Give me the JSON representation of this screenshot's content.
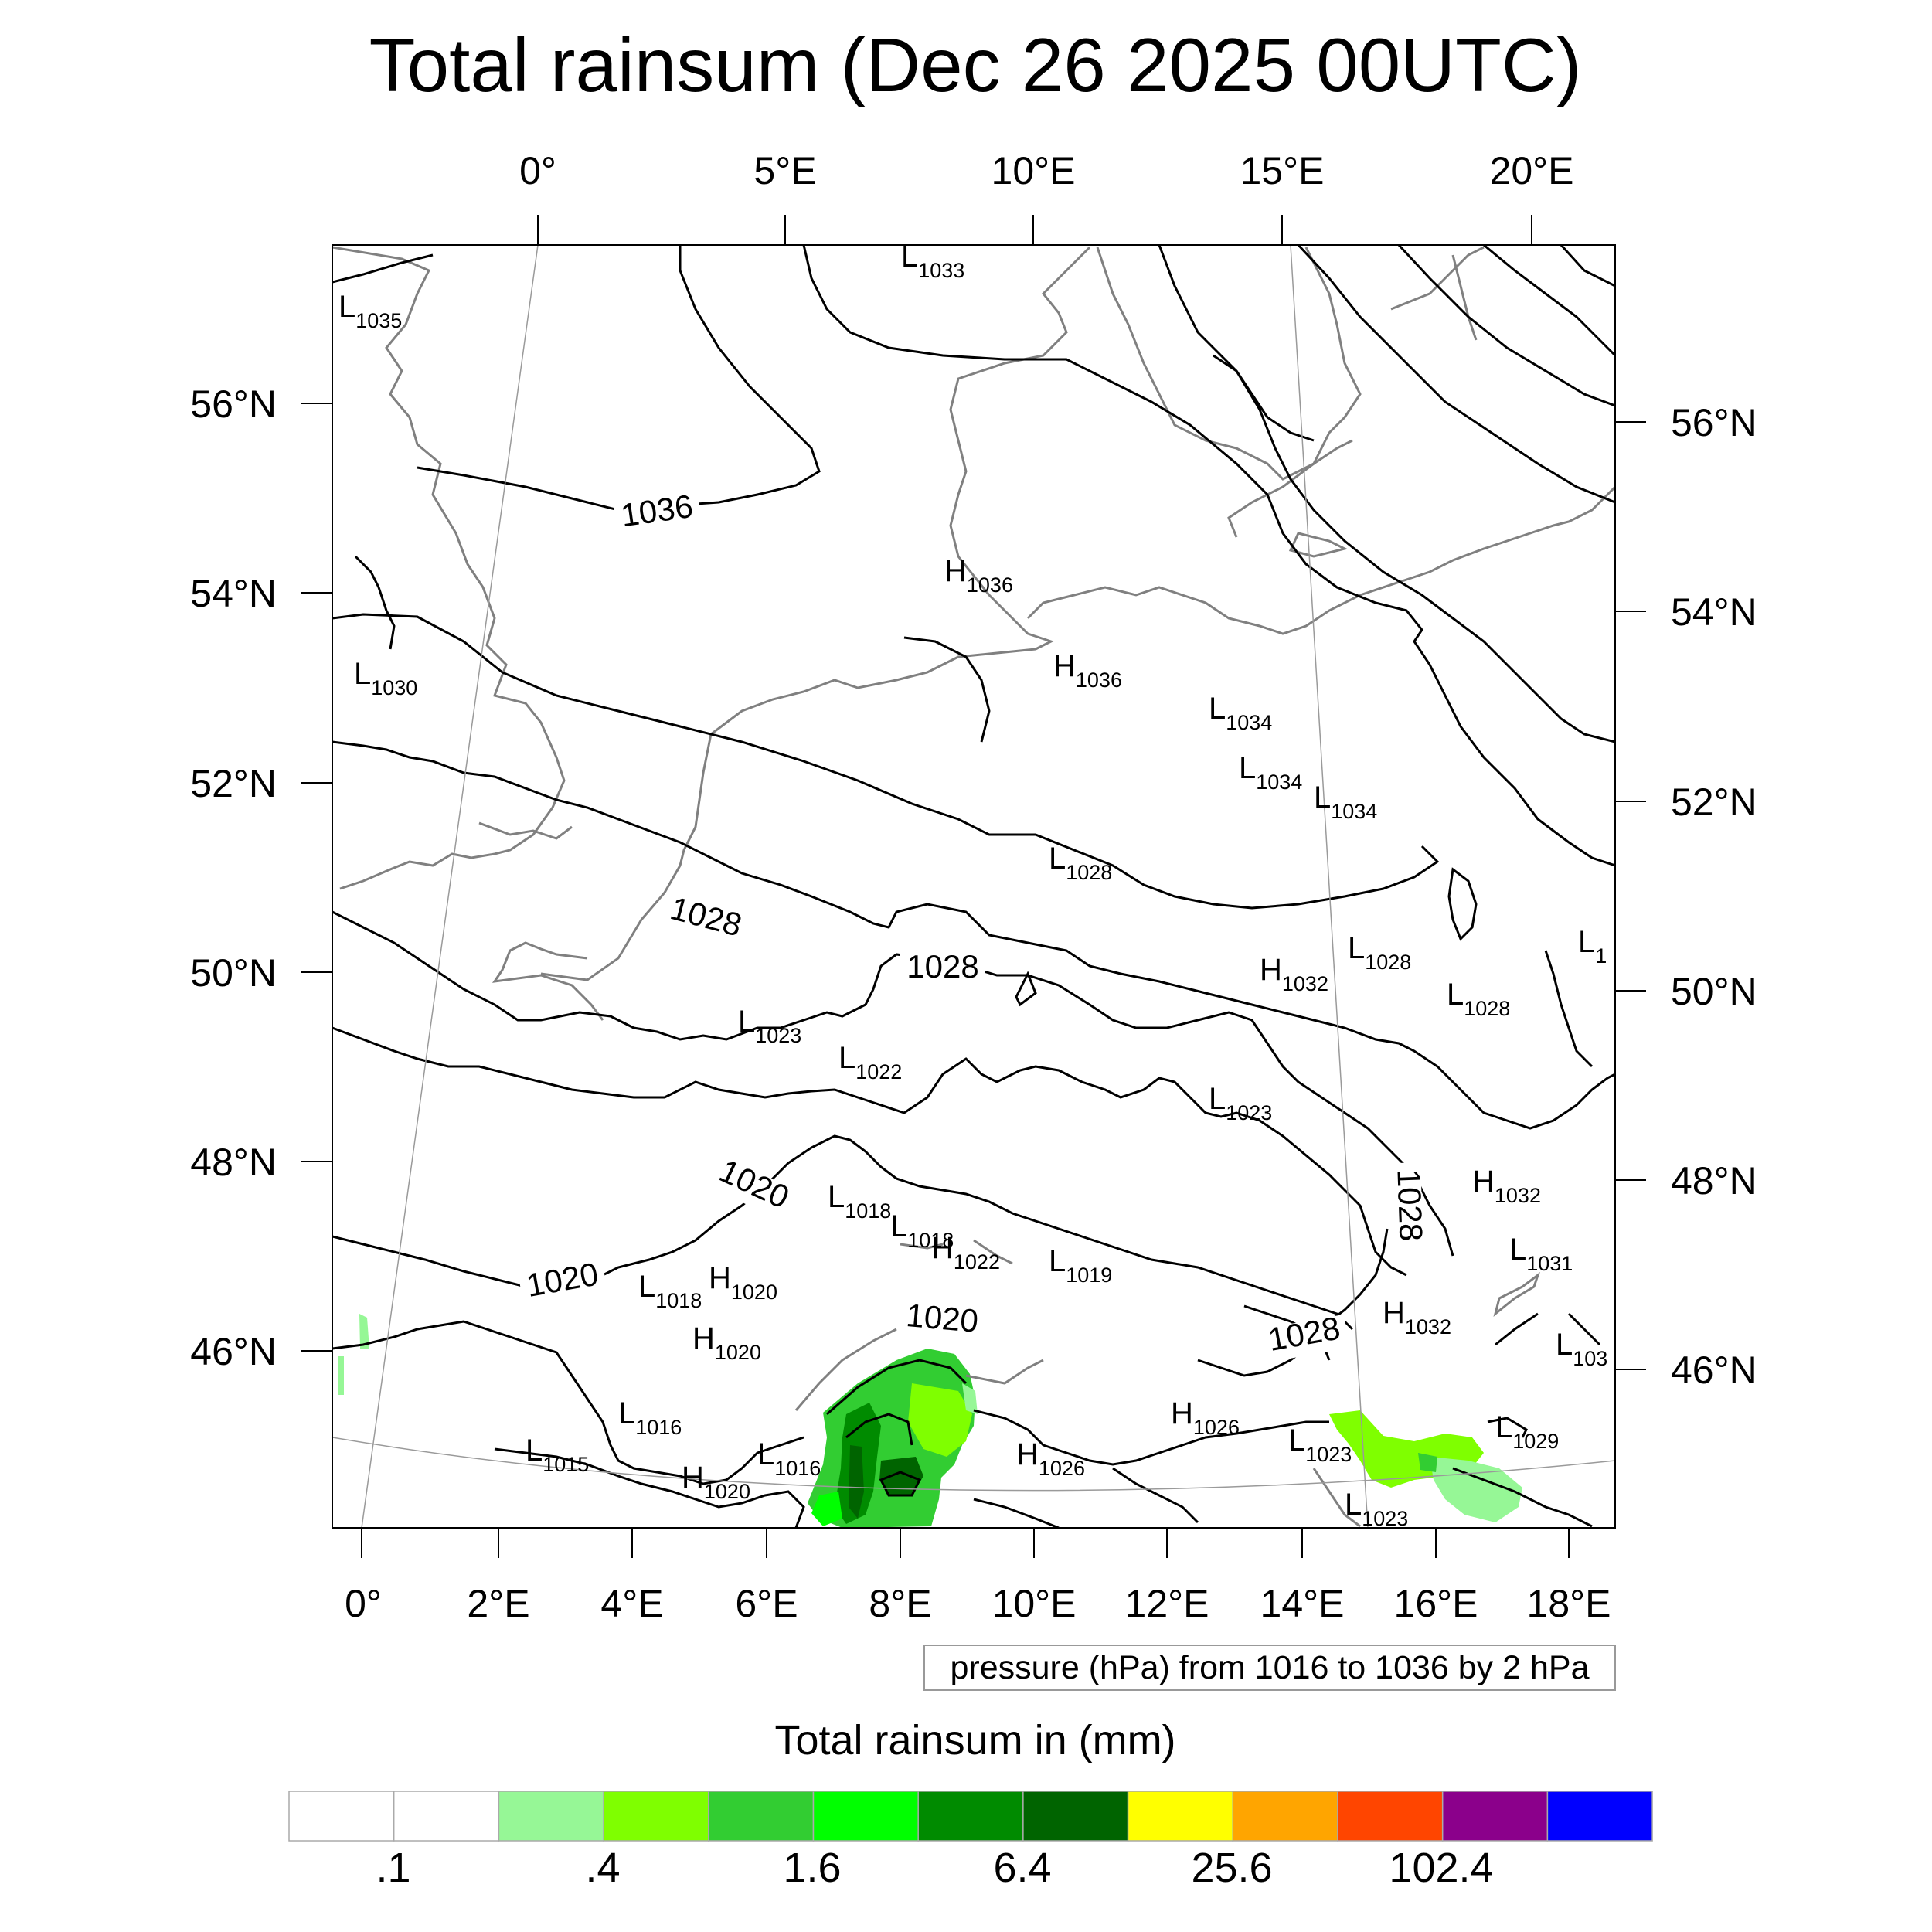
{
  "title": "Total rainsum (Dec 26 2025 00UTC)",
  "top_lon_labels": [
    "0°",
    "5°E",
    "10°E",
    "15°E",
    "20°E"
  ],
  "bottom_lon_labels": [
    "0°",
    "2°E",
    "4°E",
    "6°E",
    "8°E",
    "10°E",
    "12°E",
    "14°E",
    "16°E",
    "18°E"
  ],
  "left_lat_labels": [
    "56°N",
    "54°N",
    "52°N",
    "50°N",
    "48°N",
    "46°N"
  ],
  "right_lat_labels": [
    "56°N",
    "54°N",
    "52°N",
    "50°N",
    "48°N",
    "46°N"
  ],
  "pressure_centers": [
    {
      "t": "L",
      "v": "1033"
    },
    {
      "t": "L",
      "v": "1035"
    },
    {
      "t": "H",
      "v": "1036"
    },
    {
      "t": "L",
      "v": "1030"
    },
    {
      "t": "H",
      "v": "1036"
    },
    {
      "t": "L",
      "v": "1034"
    },
    {
      "t": "L",
      "v": "1034"
    },
    {
      "t": "L",
      "v": "1034"
    },
    {
      "t": "L",
      "v": "1028"
    },
    {
      "t": "L",
      "v": "1028"
    },
    {
      "t": "H",
      "v": "1032"
    },
    {
      "t": "L",
      "v": "1028"
    },
    {
      "t": "L",
      "v": "1"
    },
    {
      "t": "L",
      "v": "1023"
    },
    {
      "t": "L",
      "v": "1022"
    },
    {
      "t": "L",
      "v": "1023"
    },
    {
      "t": "H",
      "v": "1032"
    },
    {
      "t": "L",
      "v": "1018"
    },
    {
      "t": "L",
      "v": "1018"
    },
    {
      "t": "H",
      "v": "1022"
    },
    {
      "t": "L",
      "v": "1019"
    },
    {
      "t": "L",
      "v": "1031"
    },
    {
      "t": "L",
      "v": "1018"
    },
    {
      "t": "H",
      "v": "1020"
    },
    {
      "t": "H",
      "v": "1020"
    },
    {
      "t": "H",
      "v": "1032"
    },
    {
      "t": "L",
      "v": "103"
    },
    {
      "t": "L",
      "v": "1016"
    },
    {
      "t": "L",
      "v": "1015"
    },
    {
      "t": "L",
      "v": "1016"
    },
    {
      "t": "H",
      "v": "1020"
    },
    {
      "t": "H",
      "v": "1026"
    },
    {
      "t": "H",
      "v": "1026"
    },
    {
      "t": "L",
      "v": "1023"
    },
    {
      "t": "L",
      "v": "1029"
    },
    {
      "t": "L",
      "v": "1023"
    }
  ],
  "contour_labels": [
    "1036",
    "1028",
    "1028",
    "1020",
    "1020",
    "1020",
    "1028",
    "1028"
  ],
  "pressure_note": "pressure (hPa) from 1016 to 1036 by 2 hPa",
  "colorbar": {
    "title": "Total rainsum in (mm)",
    "colors": [
      "#ffffff",
      "#ffffff",
      "#96f796",
      "#7fff00",
      "#32cd32",
      "#00ff00",
      "#008b00",
      "#006400",
      "#ffff00",
      "#ffa500",
      "#ff4500",
      "#8b008b",
      "#0000ff"
    ],
    "labels": [
      ".1",
      ".4",
      "1.6",
      "6.4",
      "25.6",
      "102.4"
    ]
  }
}
